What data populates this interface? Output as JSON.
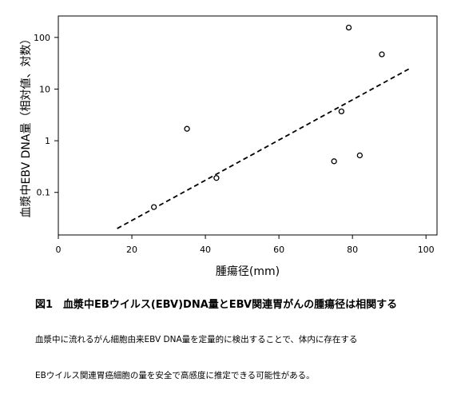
{
  "chart_data": {
    "type": "scatter",
    "xlabel": "腫瘍径(mm)",
    "ylabel": "血漿中EBV DNA量（相対値、対数）",
    "x_ticks": [
      0,
      20,
      40,
      60,
      80,
      100
    ],
    "y_ticks": [
      0.1,
      1,
      10,
      100
    ],
    "y_tick_labels": [
      "0.1",
      "1",
      "10",
      "100"
    ],
    "xlim": [
      0,
      103
    ],
    "ylim": [
      0.015,
      260
    ],
    "y_scale": "log",
    "grid": false,
    "points": [
      {
        "x": 26,
        "y": 0.052
      },
      {
        "x": 35,
        "y": 1.7
      },
      {
        "x": 43,
        "y": 0.19
      },
      {
        "x": 75,
        "y": 0.4
      },
      {
        "x": 77,
        "y": 3.7
      },
      {
        "x": 79,
        "y": 155
      },
      {
        "x": 82,
        "y": 0.52
      },
      {
        "x": 88,
        "y": 47
      }
    ],
    "trend_line": {
      "style": "dashed",
      "x": [
        16,
        96
      ],
      "y": [
        0.02,
        26
      ]
    }
  },
  "caption": {
    "title": "図1　血漿中EBウイルス(EBV)DNA量とEBV関連胃がんの腫瘍径は相関する",
    "body_lines": [
      "血漿中に流れるがん細胞由来EBV DNA量を定量的に検出することで、体内に存在する",
      "EBウイルス関連胃癌細胞の量を安全で高感度に推定できる可能性がある。"
    ]
  }
}
